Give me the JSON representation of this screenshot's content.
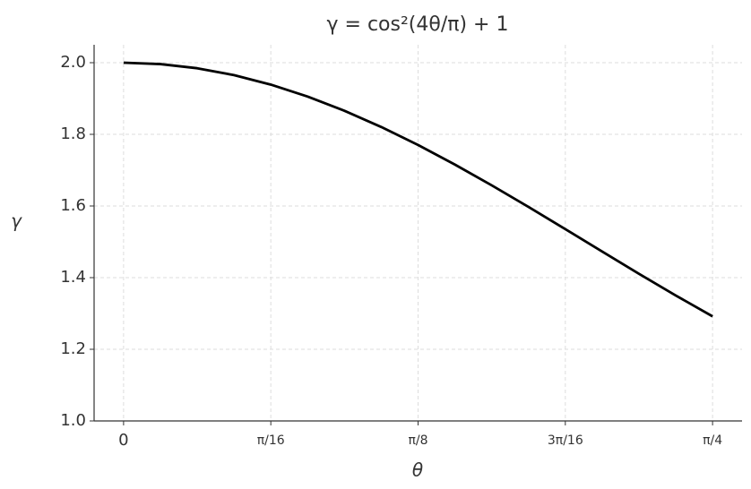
{
  "chart_data": {
    "type": "line",
    "title": "γ = cos²(4θ/π) + 1",
    "x_label": "θ",
    "y_label": "γ",
    "x": [
      0,
      0.0491,
      0.0982,
      0.1473,
      0.1963,
      0.2454,
      0.2945,
      0.3436,
      0.3927,
      0.4418,
      0.4909,
      0.54,
      0.589,
      0.6381,
      0.6872,
      0.7363,
      0.7854
    ],
    "values": [
      2.0,
      1.9961,
      1.9845,
      1.9653,
      1.9388,
      1.9055,
      1.8658,
      1.8205,
      1.7702,
      1.7156,
      1.6577,
      1.5973,
      1.5354,
      1.4729,
      1.4109,
      1.3502,
      1.2919
    ],
    "color": "#000000",
    "xlim": [
      -0.0393,
      0.8247
    ],
    "xticks": [
      0,
      {
        "value": 0.19635,
        "label": "π/16"
      },
      {
        "value": 0.392699,
        "label": "π/8"
      },
      {
        "value": 0.589049,
        "label": "3π/16"
      },
      {
        "value": 0.785398,
        "label": "π/4"
      }
    ],
    "ylim": [
      1.0,
      2.05
    ],
    "yticks": [
      {
        "value": 1,
        "label": "1.0"
      },
      1.2,
      1.4,
      1.6,
      1.8,
      {
        "value": 2,
        "label": "2.0"
      }
    ],
    "grid": true
  }
}
